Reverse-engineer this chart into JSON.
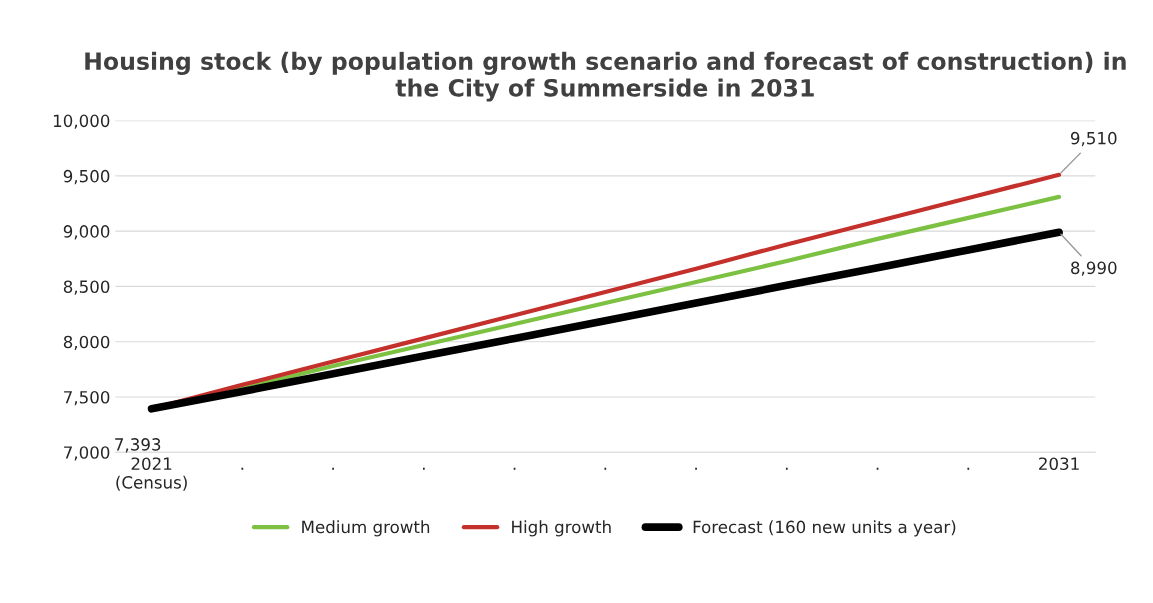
{
  "chart_data": {
    "type": "line",
    "title": "Housing stock (by population growth scenario and forecast of construction) in the City of Summerside in 2031",
    "categories": [
      "2021\n(Census)",
      ".",
      ".",
      ".",
      ".",
      ".",
      ".",
      ".",
      ".",
      ".",
      "2031"
    ],
    "series": [
      {
        "name": "Medium growth",
        "color": "#7cc142",
        "values": [
          7393,
          7580,
          7780,
          7970,
          8160,
          8350,
          8540,
          8730,
          8930,
          9120,
          9310
        ]
      },
      {
        "name": "High growth",
        "color": "#c4302b",
        "values": [
          7393,
          7610,
          7820,
          8030,
          8240,
          8450,
          8660,
          8880,
          9090,
          9300,
          9510
        ],
        "value_labels": [
          null,
          null,
          null,
          null,
          null,
          null,
          null,
          null,
          null,
          null,
          "9,510"
        ]
      },
      {
        "name": "Forecast (160 new units a year)",
        "color": "#000000",
        "values": [
          7393,
          7550,
          7710,
          7870,
          8030,
          8190,
          8350,
          8510,
          8670,
          8830,
          8990
        ],
        "value_labels": [
          "7,393",
          null,
          null,
          null,
          null,
          null,
          null,
          null,
          null,
          null,
          "8,990"
        ]
      }
    ],
    "ylim": [
      7000,
      10000
    ],
    "yticks": [
      {
        "value": 7000,
        "label": "7,000"
      },
      {
        "value": 7500,
        "label": "7,500"
      },
      {
        "value": 8000,
        "label": "8,000"
      },
      {
        "value": 8500,
        "label": "8,500"
      },
      {
        "value": 9000,
        "label": "9,000"
      },
      {
        "value": 9500,
        "label": "9,500"
      },
      {
        "value": 10000,
        "label": "10,000"
      }
    ],
    "grid": "y",
    "legend": "bottom",
    "marker": "none",
    "line_style": "solid"
  }
}
